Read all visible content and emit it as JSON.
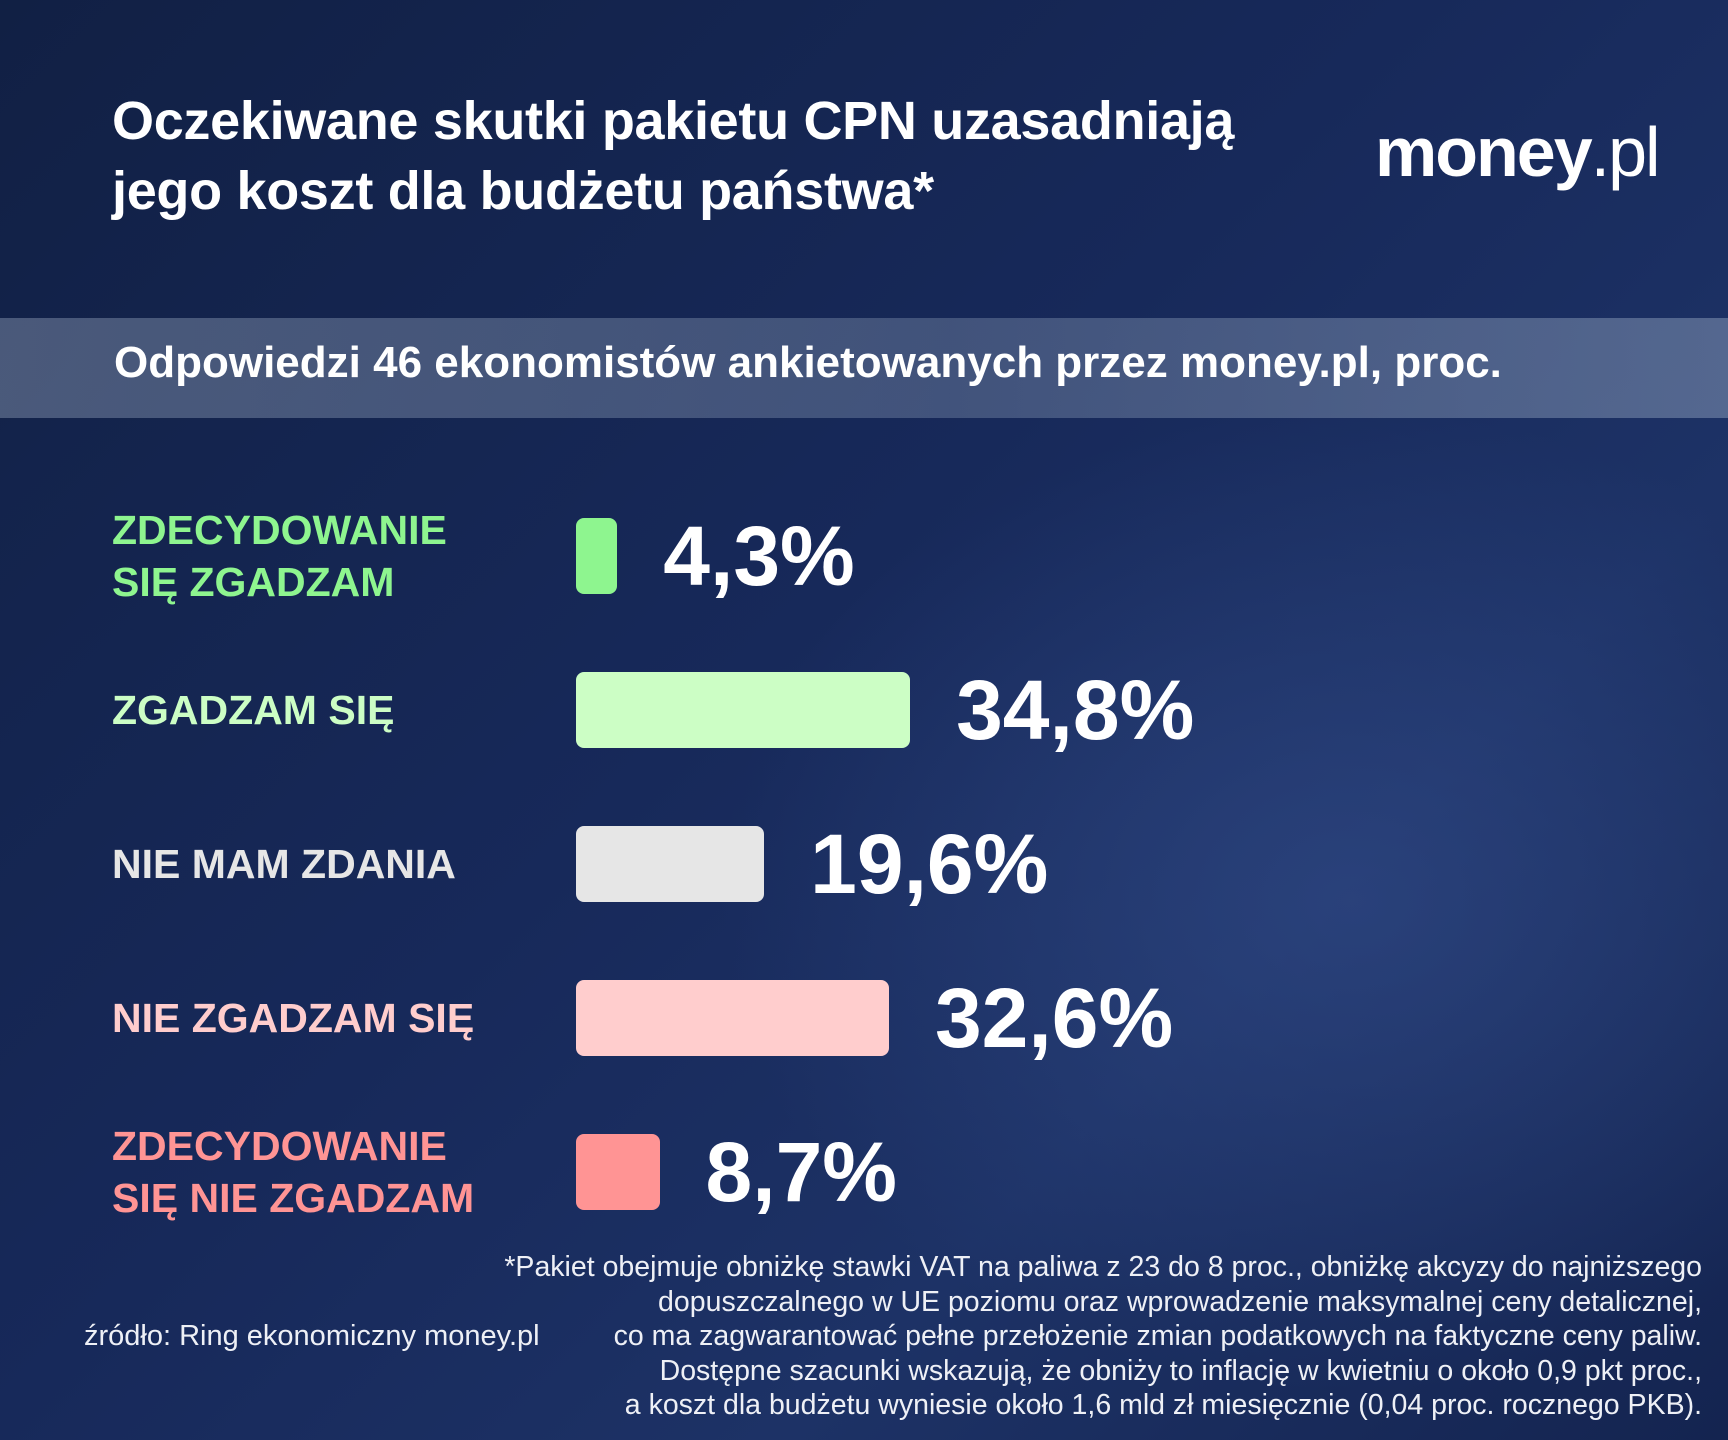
{
  "header": {
    "title": "Oczekiwane skutki pakietu CPN uzasadniają jego koszt dla budżetu państwa*",
    "logo_bold": "money",
    "logo_light": ".pl"
  },
  "subtitle": "Odpowiedzi 46 ekonomistów ankietowanych przez money.pl, proc.",
  "chart_data": {
    "type": "bar",
    "orientation": "horizontal",
    "categories": [
      "ZDECYDOWANIE\nSIĘ ZGADZAM",
      "ZGADZAM SIĘ",
      "NIE MAM ZDANIA",
      "NIE ZGADZAM SIĘ",
      "ZDECYDOWANIE\nSIĘ NIE ZGADZAM"
    ],
    "values": [
      4.3,
      34.8,
      19.6,
      32.6,
      8.7
    ],
    "value_labels": [
      "4,3%",
      "34,8%",
      "19,6%",
      "32,6%",
      "8,7%"
    ],
    "colors": [
      "#8ef58f",
      "#ccfec5",
      "#e6e6e6",
      "#ffcdcd",
      "#ff9494"
    ],
    "label_colors": [
      "#8ef58f",
      "#ccfec5",
      "#e6e6e6",
      "#ffcdcd",
      "#ff9494"
    ],
    "title": "Oczekiwane skutki pakietu CPN uzasadniają jego koszt dla budżetu państwa*",
    "subtitle": "Odpowiedzi 46 ekonomistów ankietowanych przez money.pl, proc.",
    "grid": false,
    "legend": "none"
  },
  "source": "źródło: Ring ekonomiczny money.pl",
  "footnote": [
    "*Pakiet obejmuje obniżkę stawki VAT na paliwa z 23 do 8 proc., obniżkę akcyzy do najniższego",
    "dopuszczalnego w UE poziomu oraz wprowadzenie maksymalnej ceny detalicznej,",
    "co ma zagwarantować pełne przełożenie zmian podatkowych na faktyczne ceny paliw.",
    "Dostępne szacunki wskazują, że obniży to inflację w kwietniu o około 0,9 pkt proc.,",
    "a koszt dla budżetu wyniesie około 1,6 mld zł miesięcznie (0,04 proc. rocznego PKB)."
  ]
}
